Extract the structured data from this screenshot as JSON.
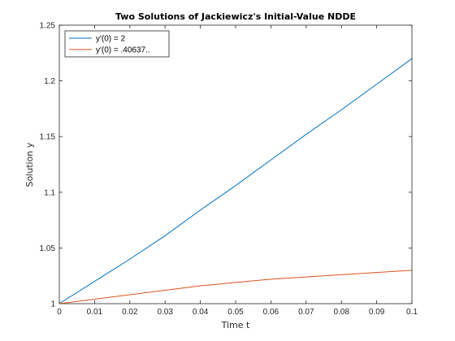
{
  "chart_data": {
    "type": "line",
    "title": "Two Solutions of Jackiewicz's Initial-Value NDDE",
    "xlabel": "Time t",
    "ylabel": "Solution y",
    "xlim": [
      0,
      0.1
    ],
    "ylim": [
      1,
      1.25
    ],
    "xticks": [
      0,
      0.01,
      0.02,
      0.03,
      0.04,
      0.05,
      0.06,
      0.07,
      0.08,
      0.09,
      0.1
    ],
    "xtick_labels": [
      "0",
      "0.01",
      "0.02",
      "0.03",
      "0.04",
      "0.05",
      "0.06",
      "0.07",
      "0.08",
      "0.09",
      "0.1"
    ],
    "yticks": [
      1,
      1.05,
      1.1,
      1.15,
      1.2,
      1.25
    ],
    "ytick_labels": [
      "1",
      "1.05",
      "1.1",
      "1.15",
      "1.2",
      "1.25"
    ],
    "grid": false,
    "legend_position": "top-left",
    "series": [
      {
        "name": "y'(0) = 2",
        "color": "#0072bd",
        "x": [
          0,
          0.01,
          0.02,
          0.03,
          0.04,
          0.05,
          0.06,
          0.07,
          0.08,
          0.09,
          0.1
        ],
        "y": [
          1.0,
          1.02,
          1.04,
          1.061,
          1.084,
          1.106,
          1.129,
          1.152,
          1.174,
          1.197,
          1.22
        ]
      },
      {
        "name": "y'(0) = .40637..",
        "color": "#d95319",
        "x": [
          0,
          0.01,
          0.02,
          0.03,
          0.04,
          0.05,
          0.06,
          0.07,
          0.08,
          0.09,
          0.1
        ],
        "y": [
          1.0,
          1.004,
          1.008,
          1.012,
          1.016,
          1.019,
          1.022,
          1.024,
          1.026,
          1.028,
          1.03
        ]
      }
    ]
  }
}
